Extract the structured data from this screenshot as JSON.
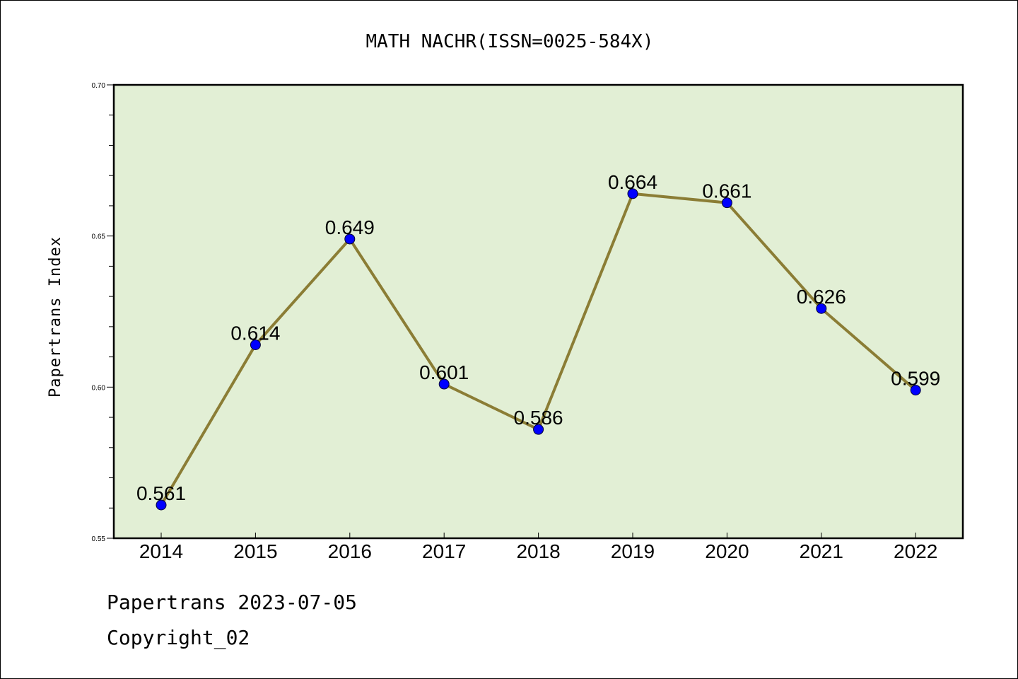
{
  "chart_data": {
    "type": "line",
    "title": "MATH NACHR(ISSN=0025-584X)",
    "xlabel": "",
    "ylabel": "Papertrans Index",
    "categories": [
      "2014",
      "2015",
      "2016",
      "2017",
      "2018",
      "2019",
      "2020",
      "2021",
      "2022"
    ],
    "series": [
      {
        "values": [
          0.561,
          0.614,
          0.649,
          0.601,
          0.586,
          0.664,
          0.661,
          0.626,
          0.599
        ],
        "labels": [
          "0.561",
          "0.614",
          "0.649",
          "0.601",
          "0.586",
          "0.664",
          "0.661",
          "0.626",
          "0.599"
        ]
      }
    ],
    "ylim": [
      0.55,
      0.7
    ],
    "yticks": [
      "0.55",
      "0.60",
      "0.65",
      "0.70"
    ],
    "grid": false,
    "legend": "none",
    "colors": {
      "line": "#8b7d35",
      "marker": "#0000ff",
      "plot_background": "#e2efd5",
      "axes": "#000000"
    }
  },
  "footer": {
    "line1": "Papertrans 2023-07-05",
    "line2": "Copyright_02"
  }
}
